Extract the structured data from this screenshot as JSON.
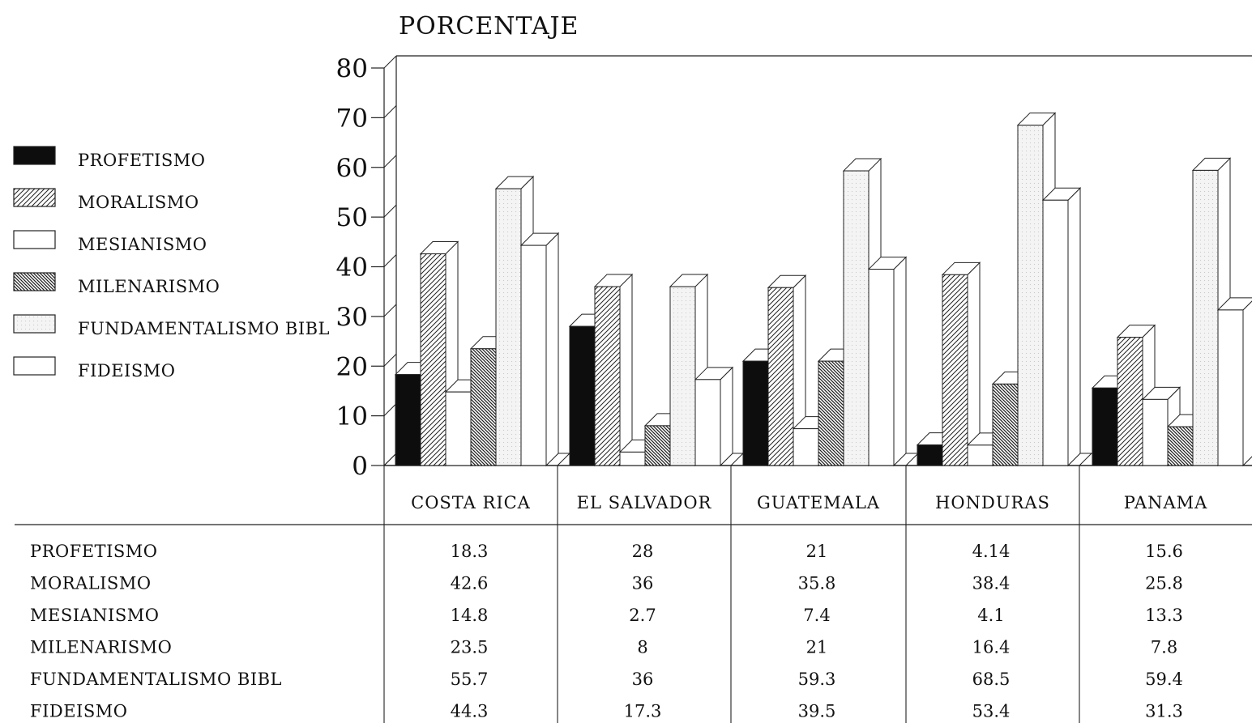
{
  "chart_data": {
    "type": "bar",
    "title": "",
    "ylabel": "PORCENTAJE",
    "xlabel": "",
    "ylim": [
      0,
      80
    ],
    "yticks": [
      0,
      10,
      20,
      30,
      40,
      50,
      60,
      70,
      80
    ],
    "grid": false,
    "legend_position": "left",
    "categories": [
      "COSTA RICA",
      "EL SALVADOR",
      "GUATEMALA",
      "HONDURAS",
      "PANAMA"
    ],
    "series": [
      {
        "name": "PROFETISMO",
        "pattern": "solid-black",
        "values": [
          18.3,
          28,
          21,
          4.14,
          15.6
        ]
      },
      {
        "name": "MORALISMO",
        "pattern": "diagonal-hatch",
        "values": [
          42.6,
          36,
          35.8,
          38.4,
          25.8
        ]
      },
      {
        "name": "MESIANISMO",
        "pattern": "white",
        "values": [
          14.8,
          2.7,
          7.4,
          4.1,
          13.3
        ]
      },
      {
        "name": "MILENARISMO",
        "pattern": "dense-diagonal-hatch",
        "values": [
          23.5,
          8,
          21,
          16.4,
          7.8
        ]
      },
      {
        "name": "FUNDAMENTALISMO BIBL",
        "pattern": "light-dotted",
        "values": [
          55.7,
          36,
          59.3,
          68.5,
          59.4
        ]
      },
      {
        "name": "FIDEISMO",
        "pattern": "white",
        "values": [
          44.3,
          17.3,
          39.5,
          53.4,
          31.3
        ]
      }
    ],
    "table": {
      "rows": [
        {
          "label": "PROFETISMO",
          "cells": [
            "18.3",
            "28",
            "21",
            "4.14",
            "15.6"
          ]
        },
        {
          "label": "MORALISMO",
          "cells": [
            "42.6",
            "36",
            "35.8",
            "38.4",
            "25.8"
          ]
        },
        {
          "label": "MESIANISMO",
          "cells": [
            "14.8",
            "2.7",
            "7.4",
            "4.1",
            "13.3"
          ]
        },
        {
          "label": "MILENARISMO",
          "cells": [
            "23.5",
            "8",
            "21",
            "16.4",
            "7.8"
          ]
        },
        {
          "label": "FUNDAMENTALISMO BIBL",
          "cells": [
            "55.7",
            "36",
            "59.3",
            "68.5",
            "59.4"
          ]
        },
        {
          "label": "FIDEISMO",
          "cells": [
            "44.3",
            "17.3",
            "39.5",
            "53.4",
            "31.3"
          ]
        }
      ]
    }
  }
}
